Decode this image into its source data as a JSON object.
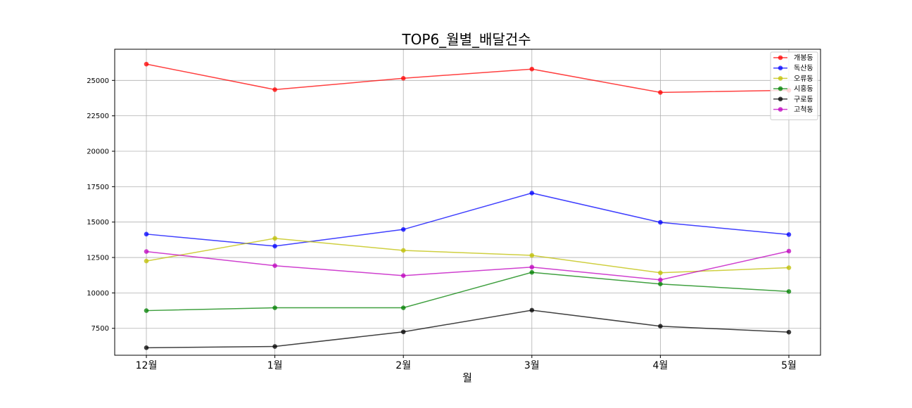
{
  "chart_data": {
    "type": "line",
    "title": "TOP6_월별_배달건수",
    "xlabel": "월",
    "ylabel": "",
    "categories": [
      "12월",
      "1월",
      "2월",
      "3월",
      "4월",
      "5월"
    ],
    "ylim": [
      5600,
      27200
    ],
    "yticks": [
      7500,
      10000,
      12500,
      15000,
      17500,
      20000,
      22500,
      25000
    ],
    "grid": true,
    "legend_position": "top-right",
    "series": [
      {
        "name": "개봉동",
        "color": "#ff0000",
        "values": [
          26150,
          24350,
          25150,
          25800,
          24150,
          24300
        ]
      },
      {
        "name": "독산동",
        "color": "#0000ff",
        "values": [
          14150,
          13300,
          14480,
          17050,
          14980,
          14120
        ]
      },
      {
        "name": "오류동",
        "color": "#bfbf00",
        "values": [
          12250,
          13850,
          13000,
          12650,
          11420,
          11780
        ]
      },
      {
        "name": "시흥동",
        "color": "#008000",
        "values": [
          8750,
          8950,
          8950,
          11450,
          10630,
          10100
        ]
      },
      {
        "name": "구로동",
        "color": "#000000",
        "values": [
          6130,
          6220,
          7250,
          8780,
          7650,
          7230
        ]
      },
      {
        "name": "고척동",
        "color": "#bf00bf",
        "values": [
          12920,
          11920,
          11220,
          11820,
          10920,
          12950
        ]
      }
    ]
  }
}
